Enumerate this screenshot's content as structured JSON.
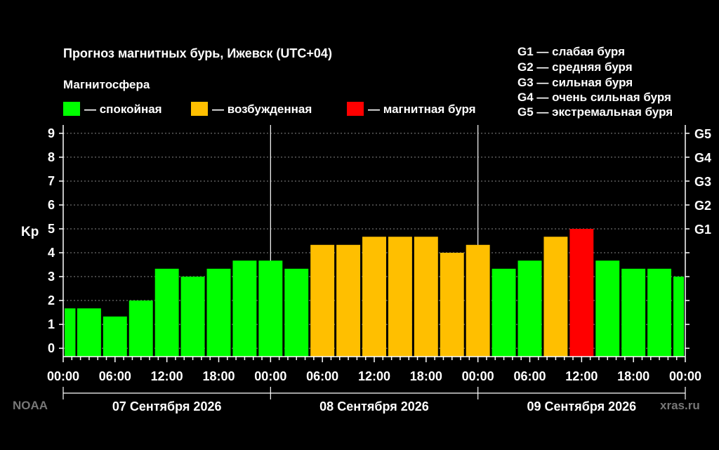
{
  "header": {
    "title": "Прогноз магнитных бурь, Ижевск (UTC+04)",
    "magnetosphere_label": "Магнитосфера"
  },
  "legend": {
    "items": [
      {
        "label": "— спокойная",
        "color": "#00ff00"
      },
      {
        "label": "— возбужденная",
        "color": "#ffbf00"
      },
      {
        "label": "— магнитная буря",
        "color": "#ff0000"
      }
    ],
    "g_levels": [
      "G1 — слабая буря",
      "G2 — средняя буря",
      "G3 — сильная буря",
      "G4 — очень сильная буря",
      "G5 — экстремальная буря"
    ]
  },
  "footer": {
    "source_left": "NOAA",
    "source_right": "xras.ru"
  },
  "chart_data": {
    "type": "bar",
    "ylabel": "Kp",
    "ylim": [
      0,
      9
    ],
    "y_ticks": [
      "0",
      "1",
      "2",
      "3",
      "4",
      "5",
      "6",
      "7",
      "8",
      "9"
    ],
    "right_ticks": [
      {
        "label": "G1",
        "value": 5
      },
      {
        "label": "G2",
        "value": 6
      },
      {
        "label": "G3",
        "value": 7
      },
      {
        "label": "G4",
        "value": 8
      },
      {
        "label": "G5",
        "value": 9
      }
    ],
    "x_tick_labels": [
      "00:00",
      "06:00",
      "12:00",
      "18:00",
      "00:00",
      "06:00",
      "12:00",
      "18:00",
      "00:00",
      "06:00",
      "12:00",
      "18:00",
      "00:00"
    ],
    "days": [
      "07 Сентября 2026",
      "08 Сентября 2026",
      "09 Сентября 2026"
    ],
    "grid": true,
    "values": [
      1.67,
      1.67,
      1.33,
      2.0,
      3.33,
      3.0,
      3.33,
      3.67,
      3.67,
      3.33,
      4.33,
      4.33,
      4.67,
      4.67,
      4.67,
      4.0,
      4.33,
      3.33,
      3.67,
      4.67,
      5.0,
      3.67,
      3.33,
      3.33,
      3.0
    ],
    "status": [
      "quiet",
      "quiet",
      "quiet",
      "quiet",
      "quiet",
      "quiet",
      "quiet",
      "quiet",
      "quiet",
      "quiet",
      "active",
      "active",
      "active",
      "active",
      "active",
      "active",
      "active",
      "quiet",
      "quiet",
      "active",
      "storm",
      "quiet",
      "quiet",
      "quiet",
      "quiet"
    ],
    "status_colors": {
      "quiet": "#00ff00",
      "active": "#ffbf00",
      "storm": "#ff0000"
    }
  }
}
